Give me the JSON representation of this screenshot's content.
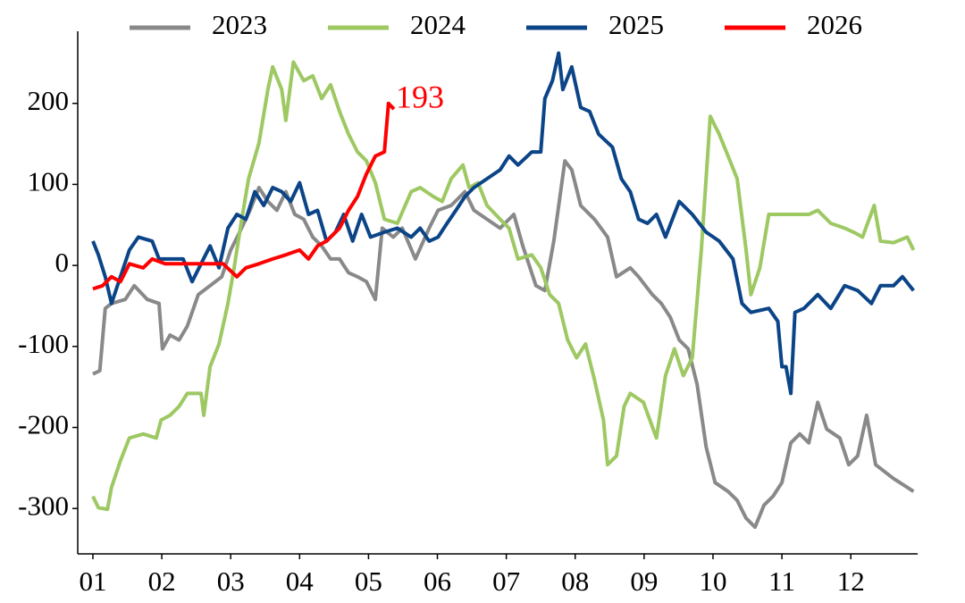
{
  "chart_data": {
    "type": "line",
    "xlim": [
      0.78,
      12.97
    ],
    "xticks": [
      {
        "value": 1,
        "label": "01"
      },
      {
        "value": 2,
        "label": "02"
      },
      {
        "value": 3,
        "label": "03"
      },
      {
        "value": 4,
        "label": "04"
      },
      {
        "value": 5,
        "label": "05"
      },
      {
        "value": 6,
        "label": "06"
      },
      {
        "value": 7,
        "label": "07"
      },
      {
        "value": 8,
        "label": "08"
      },
      {
        "value": 9,
        "label": "09"
      },
      {
        "value": 10,
        "label": "10"
      },
      {
        "value": 11,
        "label": "11"
      },
      {
        "value": 12,
        "label": "12"
      }
    ],
    "ylim": [
      -356,
      289
    ],
    "yticks": [
      -300,
      -200,
      -100,
      0,
      100,
      200
    ],
    "legend": "top",
    "series": [
      {
        "name": "2023",
        "color": "#898989",
        "x": [
          1.0,
          1.1,
          1.18,
          1.27,
          1.47,
          1.6,
          1.79,
          1.96,
          2.01,
          2.12,
          2.25,
          2.37,
          2.53,
          2.7,
          2.87,
          3.0,
          3.13,
          3.28,
          3.41,
          3.54,
          3.67,
          3.8,
          3.93,
          4.06,
          4.19,
          4.32,
          4.45,
          4.58,
          4.71,
          4.84,
          4.97,
          5.1,
          5.2,
          5.36,
          5.49,
          5.68,
          5.88,
          6.01,
          6.2,
          6.4,
          6.53,
          6.72,
          6.91,
          7.11,
          7.24,
          7.43,
          7.56,
          7.69,
          7.85,
          7.95,
          8.08,
          8.28,
          8.47,
          8.6,
          8.8,
          8.92,
          9.12,
          9.25,
          9.38,
          9.51,
          9.64,
          9.77,
          9.9,
          10.03,
          10.22,
          10.35,
          10.48,
          10.61,
          10.74,
          10.87,
          11.0,
          11.13,
          11.26,
          11.39,
          11.52,
          11.65,
          11.84,
          11.97,
          12.1,
          12.23,
          12.36,
          12.62,
          12.82,
          12.91
        ],
        "values": [
          -134,
          -130,
          -53,
          -47,
          -42,
          -25,
          -42,
          -47,
          -103,
          -86,
          -92,
          -75,
          -36,
          -25,
          -14,
          19,
          41,
          68,
          96,
          79,
          68,
          91,
          63,
          57,
          35,
          24,
          8,
          8,
          -9,
          -14,
          -20,
          -42,
          46,
          35,
          46,
          8,
          46,
          68,
          74,
          91,
          68,
          57,
          46,
          63,
          24,
          -25,
          -31,
          30,
          129,
          118,
          74,
          57,
          35,
          -14,
          -3,
          -14,
          -36,
          -47,
          -64,
          -92,
          -103,
          -147,
          -224,
          -268,
          -279,
          -290,
          -312,
          -323,
          -296,
          -285,
          -268,
          -219,
          -208,
          -219,
          -169,
          -202,
          -213,
          -246,
          -235,
          -185,
          -246,
          -263,
          -274,
          -279
        ]
      },
      {
        "name": "2024",
        "color": "#9dc862",
        "x": [
          1.0,
          1.08,
          1.21,
          1.27,
          1.4,
          1.53,
          1.73,
          1.92,
          1.99,
          2.12,
          2.25,
          2.37,
          2.57,
          2.61,
          2.7,
          2.83,
          2.96,
          3.05,
          3.15,
          3.26,
          3.41,
          3.54,
          3.61,
          3.74,
          3.8,
          3.91,
          4.06,
          4.19,
          4.32,
          4.45,
          4.58,
          4.71,
          4.84,
          4.97,
          5.1,
          5.23,
          5.42,
          5.62,
          5.75,
          5.94,
          6.07,
          6.2,
          6.37,
          6.46,
          6.59,
          6.72,
          6.91,
          7.04,
          7.17,
          7.37,
          7.5,
          7.63,
          7.76,
          7.89,
          8.02,
          8.15,
          8.28,
          8.41,
          8.47,
          8.6,
          8.71,
          8.8,
          8.99,
          9.18,
          9.31,
          9.44,
          9.57,
          9.7,
          9.83,
          9.96,
          10.09,
          10.22,
          10.35,
          10.48,
          10.55,
          10.68,
          10.81,
          11.0,
          11.19,
          11.39,
          11.52,
          11.71,
          11.91,
          12.04,
          12.17,
          12.34,
          12.43,
          12.62,
          12.82,
          12.91
        ],
        "values": [
          -285,
          -299,
          -301,
          -274,
          -241,
          -213,
          -208,
          -213,
          -191,
          -185,
          -174,
          -158,
          -158,
          -185,
          -125,
          -97,
          -47,
          -3,
          52,
          107,
          151,
          217,
          245,
          217,
          179,
          251,
          228,
          234,
          206,
          223,
          190,
          162,
          140,
          129,
          102,
          57,
          52,
          91,
          96,
          85,
          79,
          107,
          124,
          96,
          102,
          74,
          57,
          46,
          8,
          13,
          -3,
          -36,
          -47,
          -92,
          -114,
          -97,
          -141,
          -191,
          -246,
          -235,
          -174,
          -158,
          -169,
          -213,
          -136,
          -103,
          -136,
          -114,
          19,
          184,
          162,
          135,
          107,
          19,
          -36,
          -3,
          63,
          63,
          63,
          63,
          68,
          52,
          46,
          41,
          35,
          74,
          30,
          28,
          35,
          19
        ]
      },
      {
        "name": "2025",
        "color": "#0b4487",
        "x": [
          1.0,
          1.08,
          1.18,
          1.27,
          1.4,
          1.53,
          1.66,
          1.86,
          1.96,
          2.12,
          2.31,
          2.44,
          2.57,
          2.7,
          2.83,
          2.96,
          3.09,
          3.22,
          3.35,
          3.48,
          3.61,
          3.74,
          3.87,
          4.0,
          4.13,
          4.26,
          4.39,
          4.52,
          4.64,
          4.77,
          4.9,
          5.03,
          5.23,
          5.42,
          5.62,
          5.75,
          5.88,
          6.01,
          6.14,
          6.27,
          6.4,
          6.53,
          6.72,
          6.91,
          7.04,
          7.17,
          7.37,
          7.5,
          7.56,
          7.67,
          7.76,
          7.82,
          7.95,
          8.08,
          8.21,
          8.34,
          8.54,
          8.67,
          8.8,
          8.92,
          9.05,
          9.18,
          9.31,
          9.51,
          9.7,
          9.9,
          10.09,
          10.29,
          10.42,
          10.55,
          10.81,
          10.94,
          11.0,
          11.06,
          11.13,
          11.19,
          11.32,
          11.52,
          11.71,
          11.91,
          12.1,
          12.3,
          12.43,
          12.62,
          12.75,
          12.91
        ],
        "values": [
          30,
          13,
          -14,
          -47,
          -14,
          19,
          35,
          30,
          8,
          8,
          8,
          -20,
          2,
          24,
          -3,
          46,
          63,
          57,
          91,
          74,
          96,
          91,
          79,
          102,
          63,
          68,
          30,
          41,
          63,
          30,
          63,
          35,
          41,
          46,
          35,
          46,
          30,
          35,
          52,
          68,
          85,
          96,
          107,
          118,
          135,
          124,
          140,
          140,
          206,
          228,
          262,
          217,
          245,
          195,
          190,
          162,
          146,
          107,
          91,
          57,
          52,
          63,
          35,
          79,
          63,
          41,
          30,
          8,
          -47,
          -58,
          -53,
          -69,
          -125,
          -125,
          -158,
          -58,
          -53,
          -36,
          -53,
          -25,
          -31,
          -47,
          -25,
          -25,
          -14,
          -31
        ]
      },
      {
        "name": "2026",
        "color": "#ff0000",
        "x": [
          1.0,
          1.14,
          1.27,
          1.4,
          1.53,
          1.73,
          1.86,
          2.05,
          2.25,
          2.44,
          2.63,
          2.89,
          3.09,
          3.22,
          3.41,
          3.61,
          3.8,
          4.0,
          4.13,
          4.26,
          4.39,
          4.58,
          4.71,
          4.84,
          4.97,
          5.1,
          5.23,
          5.29,
          5.37
        ],
        "values": [
          -29,
          -25,
          -14,
          -20,
          2,
          -3,
          8,
          2,
          2,
          2,
          2,
          2,
          -14,
          -3,
          2,
          8,
          13,
          19,
          8,
          24,
          30,
          46,
          68,
          85,
          113,
          135,
          140,
          200,
          193
        ]
      }
    ]
  }
}
